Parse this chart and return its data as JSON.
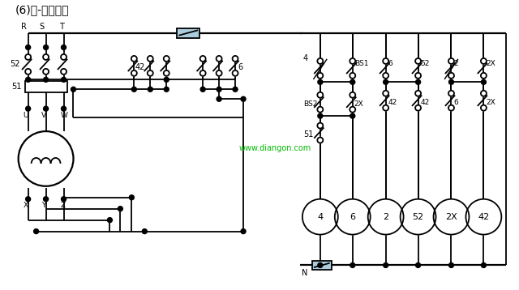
{
  "title": "(6)星-三角起动",
  "bg": "#ffffff",
  "lc": "#000000",
  "lw": 1.3,
  "wm": "www.diangon.com",
  "wm_color": "#00bb00",
  "figsize": [
    6.4,
    3.58
  ],
  "dpi": 100,
  "coil_labels": [
    "4",
    "6",
    "2",
    "52",
    "2X",
    "42"
  ],
  "contact_labels_row1": [
    "2",
    "6",
    "52",
    "2",
    "2X"
  ],
  "contact_labels_row2": [
    "2X",
    "42",
    "6",
    "2X"
  ],
  "fuse_color": "#aaccdd"
}
